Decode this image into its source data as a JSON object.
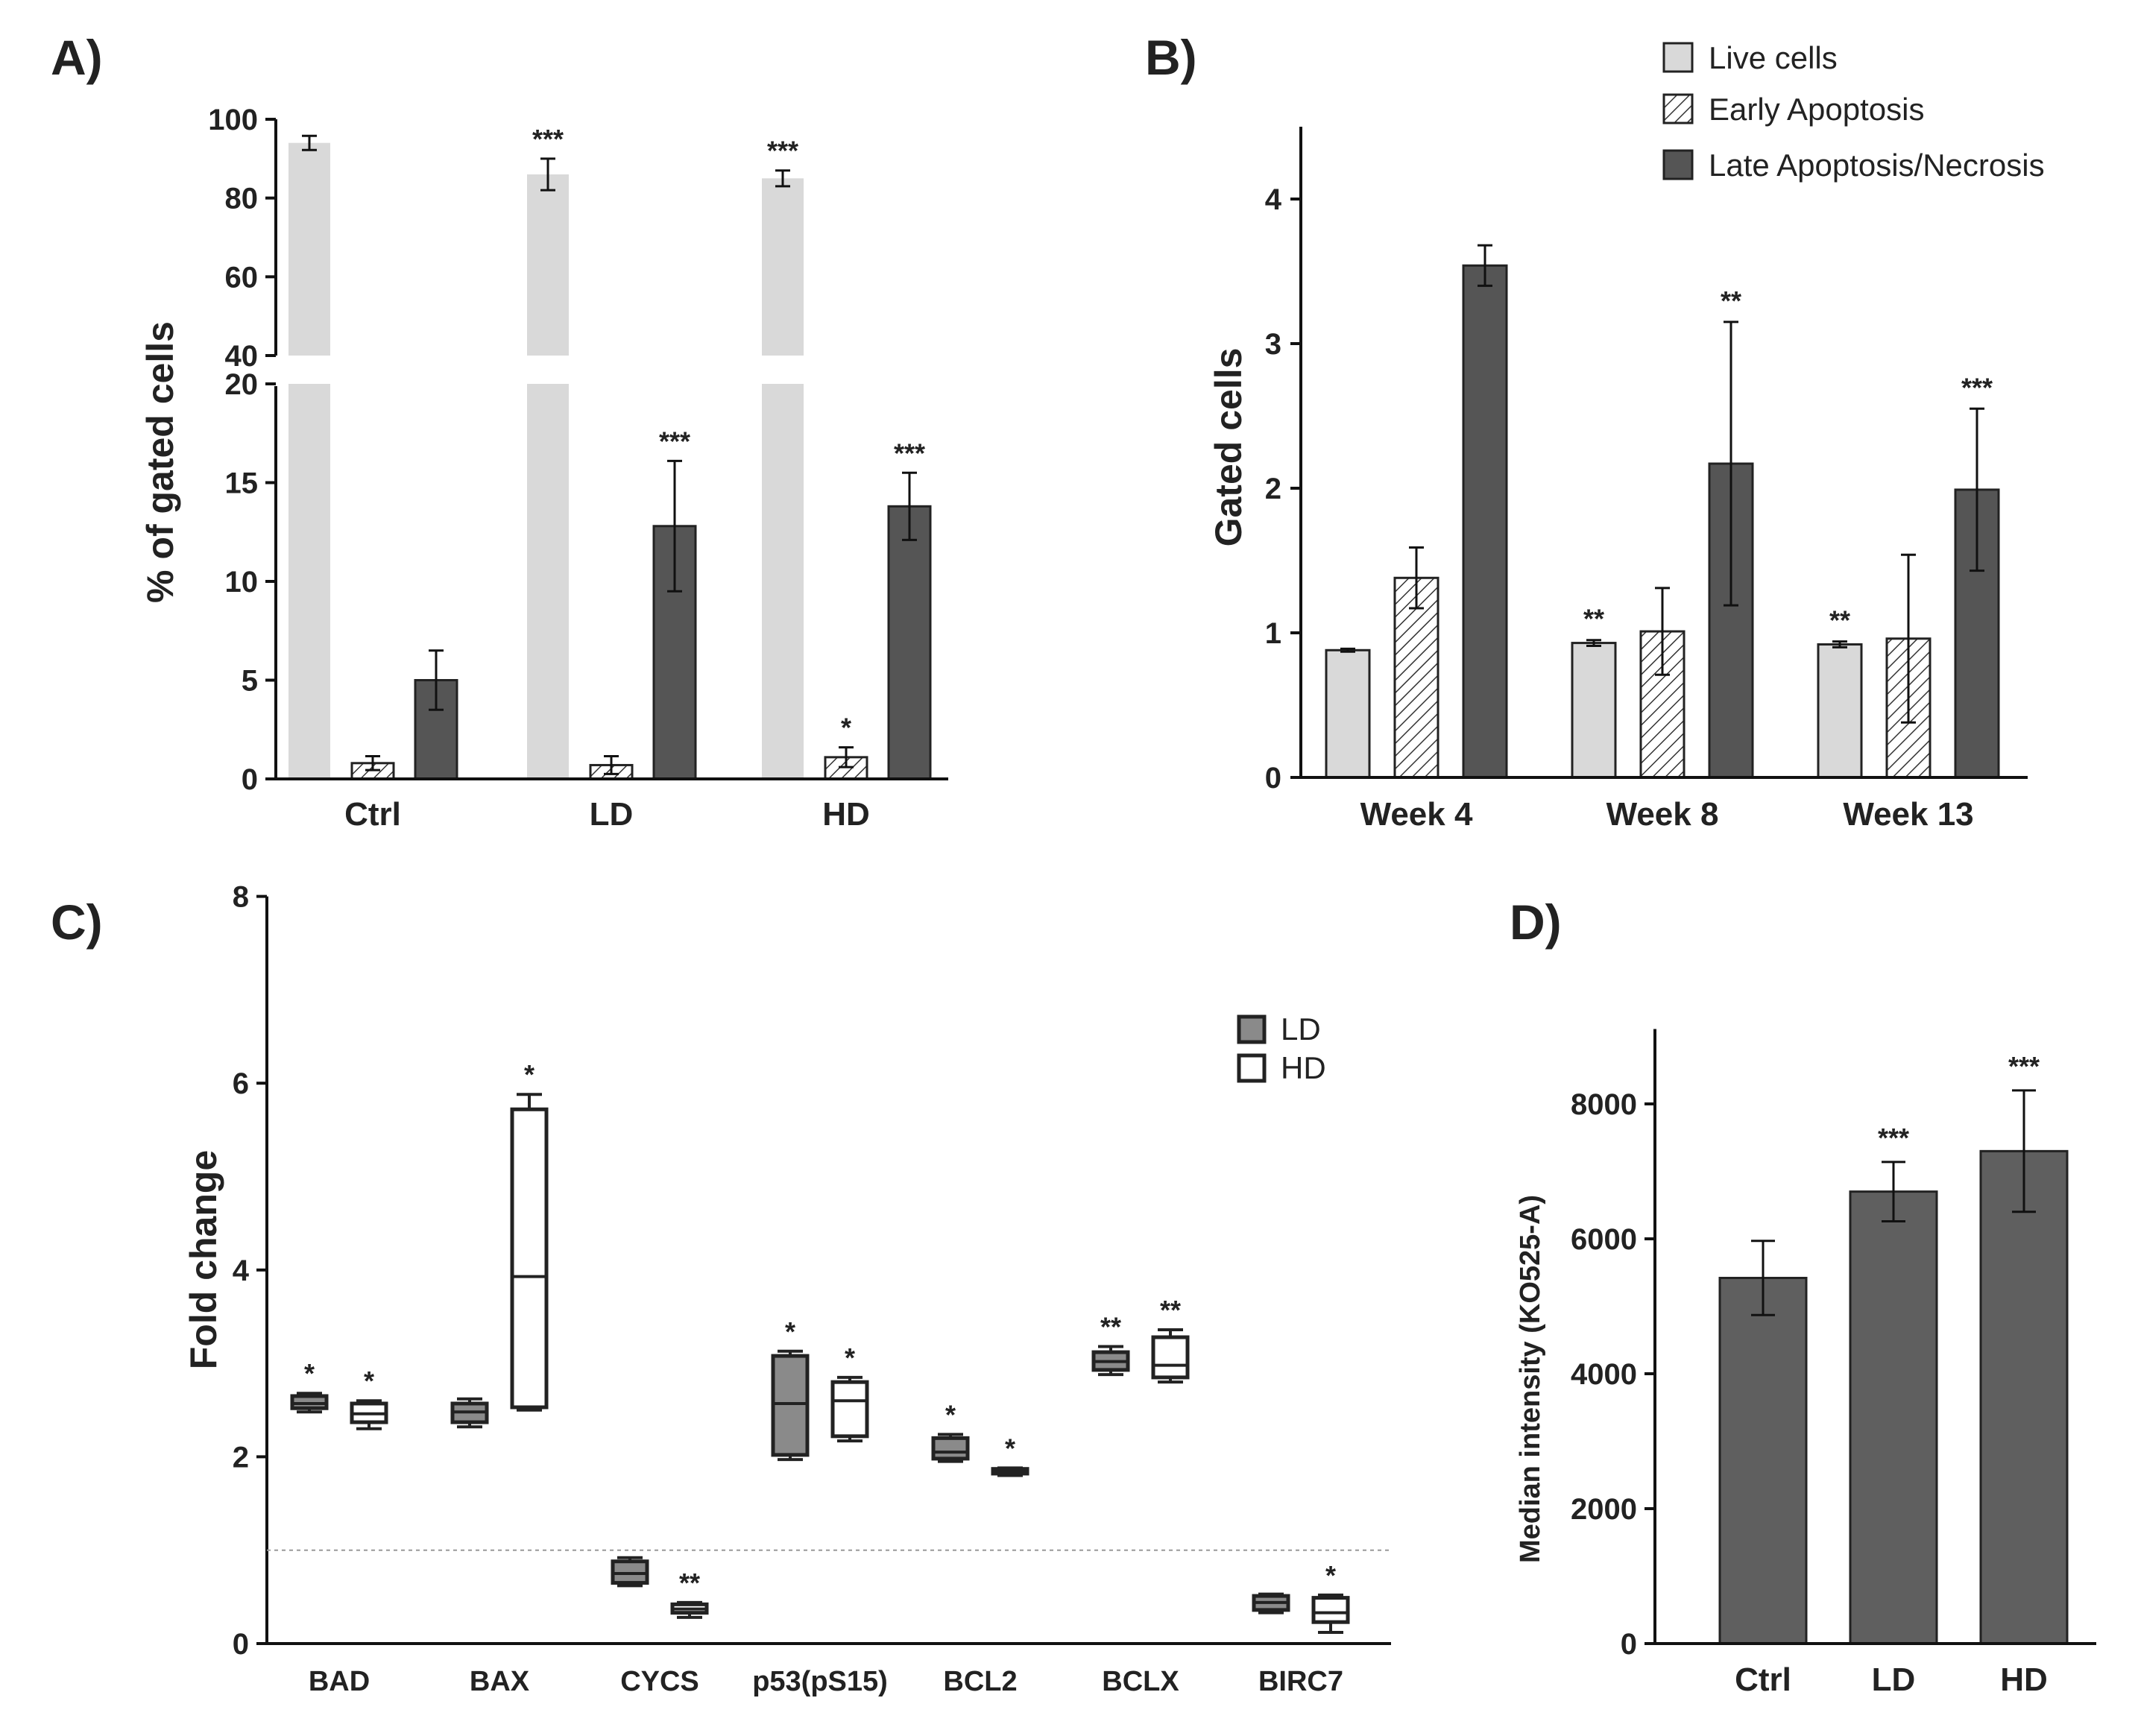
{
  "colors": {
    "live": "#d9d9d9",
    "early_pattern": "#ffffff",
    "late": "#555555",
    "ld": "#8a8a8a",
    "hd": "#ffffff",
    "bar_d": "#5f5f5f",
    "axis": "#111111"
  },
  "icons": [
    "hatch-pattern",
    "box-plot"
  ],
  "chart_data": [
    {
      "id": "A",
      "label": "A)",
      "type": "bar",
      "ylabel": "% of gated cells",
      "categories": [
        "Ctrl",
        "LD",
        "HD"
      ],
      "broken_axis": {
        "lower": [
          0,
          20
        ],
        "upper": [
          40,
          100
        ],
        "lower_ticks": [
          "0",
          "5",
          "10",
          "15",
          "20"
        ],
        "upper_ticks": [
          "40",
          "60",
          "80",
          "100"
        ]
      },
      "series": [
        {
          "name": "Live cells",
          "values": [
            94.0,
            86.0,
            85.0
          ],
          "errors": [
            1.8,
            4.0,
            2.0
          ],
          "sig": [
            "",
            "***",
            "***"
          ]
        },
        {
          "name": "Early Apoptosis",
          "values": [
            0.8,
            0.7,
            1.1
          ],
          "errors": [
            0.35,
            0.45,
            0.5
          ],
          "sig": [
            "",
            "",
            "*"
          ]
        },
        {
          "name": "Late Apoptosis/Necrosis",
          "values": [
            5.0,
            12.8,
            13.8
          ],
          "errors": [
            1.5,
            3.3,
            1.7
          ],
          "sig": [
            "",
            "***",
            "***"
          ]
        }
      ]
    },
    {
      "id": "B",
      "label": "B)",
      "type": "bar",
      "ylabel": "Gated cells",
      "categories": [
        "Week 4",
        "Week 8",
        "Week 13"
      ],
      "ylim": [
        0,
        4.5
      ],
      "ticks": [
        "0",
        "1",
        "2",
        "3",
        "4"
      ],
      "legend": {
        "position": "top-right",
        "entries": [
          "Live cells",
          "Early Apoptosis",
          "Late Apoptosis/Necrosis"
        ]
      },
      "series": [
        {
          "name": "Live cells",
          "values": [
            0.88,
            0.93,
            0.92
          ],
          "errors": [
            0.01,
            0.02,
            0.02
          ],
          "sig": [
            "",
            "**",
            "**"
          ]
        },
        {
          "name": "Early Apoptosis",
          "values": [
            1.38,
            1.01,
            0.96
          ],
          "errors": [
            0.21,
            0.3,
            0.58
          ],
          "sig": [
            "",
            "",
            ""
          ]
        },
        {
          "name": "Late Apoptosis/Necrosis",
          "values": [
            3.54,
            2.17,
            1.99
          ],
          "errors": [
            0.14,
            0.98,
            0.56
          ],
          "sig": [
            "",
            "**",
            "***"
          ]
        }
      ]
    },
    {
      "id": "C",
      "label": "C)",
      "type": "box",
      "ylabel": "Fold change",
      "ylim": [
        0,
        8
      ],
      "ticks": [
        "0",
        "2",
        "4",
        "6",
        "8"
      ],
      "reference_line": 1.0,
      "categories": [
        "BAD",
        "BAX",
        "CYCS",
        "p53(pS15)",
        "BCL2",
        "BCLX",
        "BIRC7"
      ],
      "legend": {
        "position": "top-right",
        "entries": [
          "LD",
          "HD"
        ]
      },
      "series": [
        {
          "name": "LD",
          "boxes": [
            {
              "min": 2.48,
              "q1": 2.52,
              "median": 2.57,
              "q3": 2.65,
              "max": 2.68,
              "sig": "*"
            },
            {
              "min": 2.32,
              "q1": 2.37,
              "median": 2.48,
              "q3": 2.57,
              "max": 2.62,
              "sig": ""
            },
            {
              "min": 0.62,
              "q1": 0.65,
              "median": 0.75,
              "q3": 0.88,
              "max": 0.92,
              "sig": ""
            },
            {
              "min": 1.97,
              "q1": 2.02,
              "median": 2.57,
              "q3": 3.08,
              "max": 3.13,
              "sig": "*"
            },
            {
              "min": 1.95,
              "q1": 1.98,
              "median": 2.05,
              "q3": 2.2,
              "max": 2.24,
              "sig": "*"
            },
            {
              "min": 2.88,
              "q1": 2.93,
              "median": 3.02,
              "q3": 3.12,
              "max": 3.18,
              "sig": "**"
            },
            {
              "min": 0.33,
              "q1": 0.36,
              "median": 0.44,
              "q3": 0.51,
              "max": 0.53,
              "sig": ""
            }
          ]
        },
        {
          "name": "HD",
          "boxes": [
            {
              "min": 2.3,
              "q1": 2.37,
              "median": 2.46,
              "q3": 2.57,
              "max": 2.6,
              "sig": "*"
            },
            {
              "min": 2.5,
              "q1": 2.53,
              "median": 3.93,
              "q3": 5.72,
              "max": 5.88,
              "sig": "*"
            },
            {
              "min": 0.28,
              "q1": 0.33,
              "median": 0.37,
              "q3": 0.42,
              "max": 0.44,
              "sig": "**"
            },
            {
              "min": 2.17,
              "q1": 2.22,
              "median": 2.6,
              "q3": 2.8,
              "max": 2.85,
              "sig": "*"
            },
            {
              "min": 1.8,
              "q1": 1.82,
              "median": 1.84,
              "q3": 1.87,
              "max": 1.88,
              "sig": "*"
            },
            {
              "min": 2.8,
              "q1": 2.85,
              "median": 2.98,
              "q3": 3.28,
              "max": 3.36,
              "sig": "**"
            },
            {
              "min": 0.12,
              "q1": 0.23,
              "median": 0.33,
              "q3": 0.49,
              "max": 0.52,
              "sig": "*"
            }
          ]
        }
      ]
    },
    {
      "id": "D",
      "label": "D)",
      "type": "bar",
      "ylabel": "Median intensity (KO525-A)",
      "categories": [
        "Ctrl",
        "LD",
        "HD"
      ],
      "ylim": [
        0,
        9000
      ],
      "ticks": [
        "0",
        "2000",
        "4000",
        "6000",
        "8000"
      ],
      "values": [
        5420,
        6700,
        7300
      ],
      "errors": [
        550,
        440,
        900
      ],
      "sig": [
        "",
        "***",
        "***"
      ]
    }
  ]
}
